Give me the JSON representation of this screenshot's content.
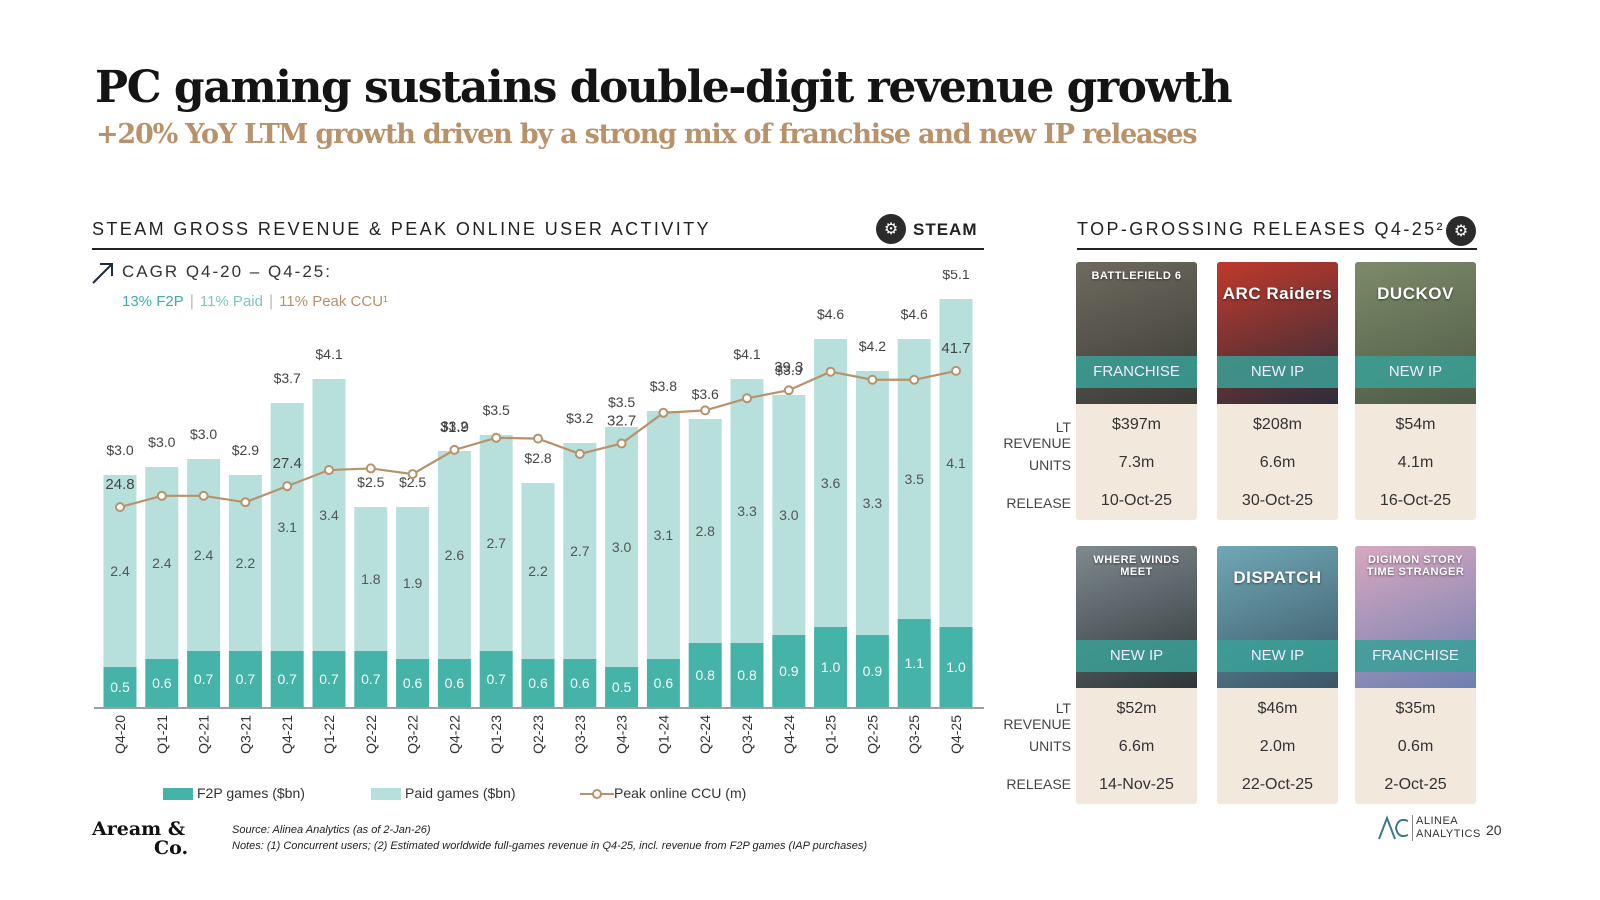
{
  "header": {
    "title": "PC gaming sustains double-digit revenue growth",
    "subtitle": "+20% YoY LTM growth driven by a strong mix of franchise and new IP releases"
  },
  "left_section": {
    "heading": "STEAM GROSS REVENUE & PEAK ONLINE USER ACTIVITY",
    "steam_label": "STEAM",
    "cagr_label": "CAGR Q4-20 – Q4-25:",
    "cagr_f2p": "13% F2P",
    "cagr_paid": "11% Paid",
    "cagr_ccu": "11% Peak CCU¹",
    "cagr_sep": "|"
  },
  "right_section": {
    "heading": "TOP-GROSSING RELEASES Q4-25²",
    "row_labels": {
      "revenue": "LT REVENUE",
      "units": "UNITS",
      "release": "RELEASE"
    },
    "games": [
      {
        "name": "BATTLEFIELD 6",
        "tag": "FRANCHISE",
        "revenue": "$397m",
        "units": "7.3m",
        "release": "10-Oct-25",
        "color1": "#6e6a5e",
        "color2": "#3a3a36"
      },
      {
        "name": "ARC Raiders",
        "tag": "NEW IP",
        "revenue": "$208m",
        "units": "6.6m",
        "release": "30-Oct-25",
        "color1": "#c0392b",
        "color2": "#2b2d3a"
      },
      {
        "name": "DUCKOV",
        "tag": "NEW IP",
        "revenue": "$54m",
        "units": "4.1m",
        "release": "16-Oct-25",
        "color1": "#7d8a6a",
        "color2": "#4e5a45"
      },
      {
        "name": "WHERE WINDS MEET",
        "tag": "NEW IP",
        "revenue": "$52m",
        "units": "6.6m",
        "release": "14-Nov-25",
        "color1": "#7e8a8e",
        "color2": "#2f3538"
      },
      {
        "name": "DISPATCH",
        "tag": "NEW IP",
        "revenue": "$46m",
        "units": "2.0m",
        "release": "22-Oct-25",
        "color1": "#6fa8b5",
        "color2": "#3b5566"
      },
      {
        "name": "DIGIMON STORY TIME STRANGER",
        "tag": "FRANCHISE",
        "revenue": "$35m",
        "units": "0.6m",
        "release": "2-Oct-25",
        "color1": "#d8a7c0",
        "color2": "#6d7fb0"
      }
    ]
  },
  "chart_data": {
    "type": "bar",
    "stacked": true,
    "categories": [
      "Q4-20",
      "Q1-21",
      "Q2-21",
      "Q3-21",
      "Q4-21",
      "Q1-22",
      "Q2-22",
      "Q3-22",
      "Q4-22",
      "Q1-23",
      "Q2-23",
      "Q3-23",
      "Q4-23",
      "Q1-24",
      "Q2-24",
      "Q3-24",
      "Q4-24",
      "Q1-25",
      "Q2-25",
      "Q3-25",
      "Q4-25"
    ],
    "series": [
      {
        "name": "F2P games ($bn)",
        "color": "#45b3a8",
        "values": [
          0.5,
          0.6,
          0.7,
          0.7,
          0.7,
          0.7,
          0.7,
          0.6,
          0.6,
          0.7,
          0.6,
          0.6,
          0.5,
          0.6,
          0.8,
          0.8,
          0.9,
          1.0,
          0.9,
          1.1,
          1.0
        ]
      },
      {
        "name": "Paid games ($bn)",
        "color": "#b7e0dc",
        "values": [
          2.4,
          2.4,
          2.4,
          2.2,
          3.1,
          3.4,
          1.8,
          1.9,
          2.6,
          2.7,
          2.2,
          2.7,
          3.0,
          3.1,
          2.8,
          3.3,
          3.0,
          3.6,
          3.3,
          3.5,
          4.1
        ]
      }
    ],
    "totals": [
      "$3.0",
      "$3.0",
      "$3.0",
      "$2.9",
      "$3.7",
      "$4.1",
      "$2.5",
      "$2.5",
      "$3.2",
      "$3.5",
      "$2.8",
      "$3.2",
      "$3.5",
      "$3.8",
      "$3.6",
      "$4.1",
      "$3.9",
      "$4.6",
      "$4.2",
      "$4.6",
      "$5.1"
    ],
    "line": {
      "name": "Peak online CCU (m)",
      "color": "#b8926a",
      "values": [
        24.8,
        26.2,
        26.2,
        25.4,
        27.4,
        29.4,
        29.6,
        28.9,
        31.9,
        33.4,
        33.3,
        31.4,
        32.7,
        36.5,
        36.8,
        38.3,
        39.3,
        41.6,
        40.6,
        40.6,
        41.7
      ],
      "labeled": {
        "0": "24.8",
        "4": "27.4",
        "8": "31.9",
        "12": "32.7",
        "16": "39.3",
        "20": "41.7"
      }
    },
    "ylim_bars": [
      0,
      5.5
    ],
    "ylim_line": [
      0,
      50
    ]
  },
  "footer": {
    "brand_line1": "Aream &",
    "brand_line2": "Co.",
    "source": "Source: Alinea Analytics (as of 2-Jan-26)",
    "notes": "Notes: (1) Concurrent users; (2) Estimated worldwide full-games revenue in Q4-25, incl. revenue from F2P games (IAP purchases)",
    "alinea_line1": "ALINEA",
    "alinea_line2": "ANALYTICS",
    "page_number": "20"
  }
}
